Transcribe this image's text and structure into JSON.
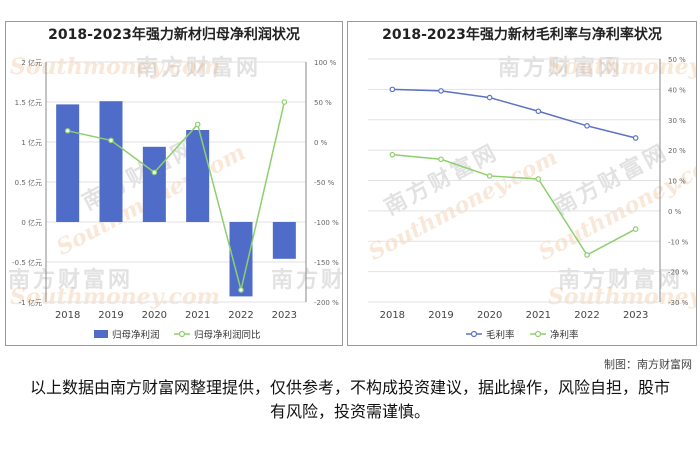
{
  "credit": "制图：南方财富网",
  "disclaimer": "以上数据由南方财富网整理提供，仅供参考，不构成投资建议，据此操作，风险自担，股市有风险，投资需谨慎。",
  "watermark": {
    "cn": "南方财富网",
    "en": "Southmoney.com"
  },
  "colors": {
    "bar": "#4e6cc8",
    "green": "#8ecf6e",
    "blue": "#5b72c2",
    "grid": "#e2e2e2",
    "axis": "#888888"
  },
  "chart_data": [
    {
      "type": "bar",
      "title": "2018-2023年强力新材归母净利润状况",
      "categories": [
        "2018",
        "2019",
        "2020",
        "2021",
        "2022",
        "2023"
      ],
      "series": [
        {
          "name": "归母净利润",
          "type": "bar",
          "axis": "left",
          "values": [
            1.47,
            1.51,
            0.94,
            1.15,
            -0.93,
            -0.46
          ]
        },
        {
          "name": "归母净利润同比",
          "type": "line",
          "axis": "right",
          "values": [
            14,
            2,
            -38,
            22,
            -185,
            50
          ]
        }
      ],
      "yleft": {
        "min": -1,
        "max": 2,
        "ticks": [
          -1,
          -0.5,
          0,
          0.5,
          1,
          1.5,
          2
        ],
        "tick_labels": [
          "-1 亿元",
          "-0.5 亿元",
          "0 亿元",
          "0.5 亿元",
          "1 亿元",
          "1.5 亿元",
          "2 亿元"
        ]
      },
      "yright": {
        "min": -200,
        "max": 100,
        "ticks": [
          -200,
          -150,
          -100,
          -50,
          0,
          50,
          100
        ],
        "tick_labels": [
          "-200 %",
          "-150 %",
          "-100 %",
          "-50 %",
          "0 %",
          "50 %",
          "100 %"
        ]
      },
      "grid": true,
      "legend": "bottom"
    },
    {
      "type": "line",
      "title": "2018-2023年强力新材毛利率与净利率状况",
      "categories": [
        "2018",
        "2019",
        "2020",
        "2021",
        "2022",
        "2023"
      ],
      "series": [
        {
          "name": "毛利率",
          "values": [
            40,
            39.5,
            37.3,
            32.8,
            28,
            24
          ]
        },
        {
          "name": "净利率",
          "values": [
            18.5,
            17,
            11.5,
            10.5,
            -14.5,
            -6
          ]
        }
      ],
      "y": {
        "min": -30,
        "max": 50,
        "ticks": [
          -30,
          -20,
          -10,
          0,
          10,
          20,
          30,
          40,
          50
        ],
        "tick_labels": [
          "-30 %",
          "-20 %",
          "-10 %",
          "0 %",
          "10 %",
          "20 %",
          "30 %",
          "40 %",
          "50 %"
        ]
      },
      "grid": true,
      "legend": "bottom"
    }
  ]
}
